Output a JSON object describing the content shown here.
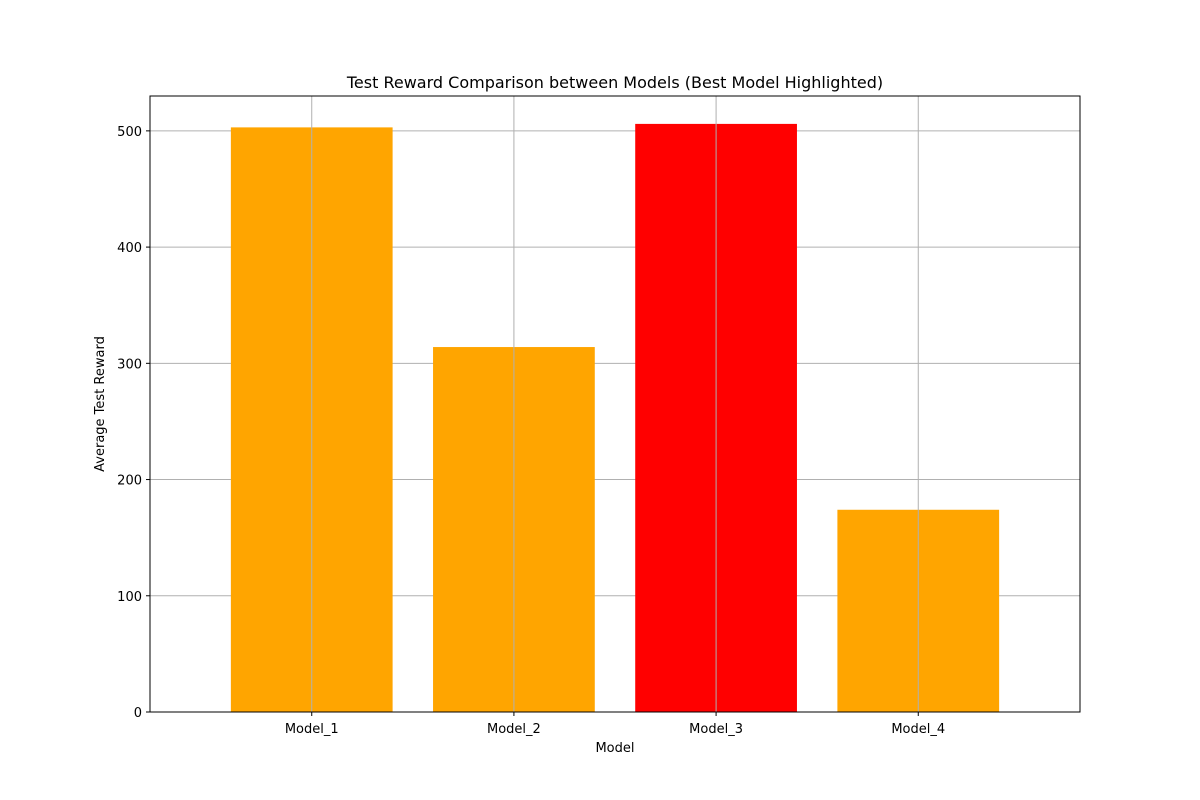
{
  "chart_data": {
    "type": "bar",
    "title": "Test Reward Comparison between Models (Best Model Highlighted)",
    "xlabel": "Model",
    "ylabel": "Average Test Reward",
    "categories": [
      "Model_1",
      "Model_2",
      "Model_3",
      "Model_4"
    ],
    "values": [
      503,
      314,
      506,
      174
    ],
    "bar_colors": [
      "#ffa500",
      "#ffa500",
      "#ff0000",
      "#ffa500"
    ],
    "highlighted_category": "Model_3",
    "ylim": [
      0,
      530
    ],
    "yticks": [
      0,
      100,
      200,
      300,
      400,
      500
    ],
    "grid": true,
    "legend": "none"
  }
}
